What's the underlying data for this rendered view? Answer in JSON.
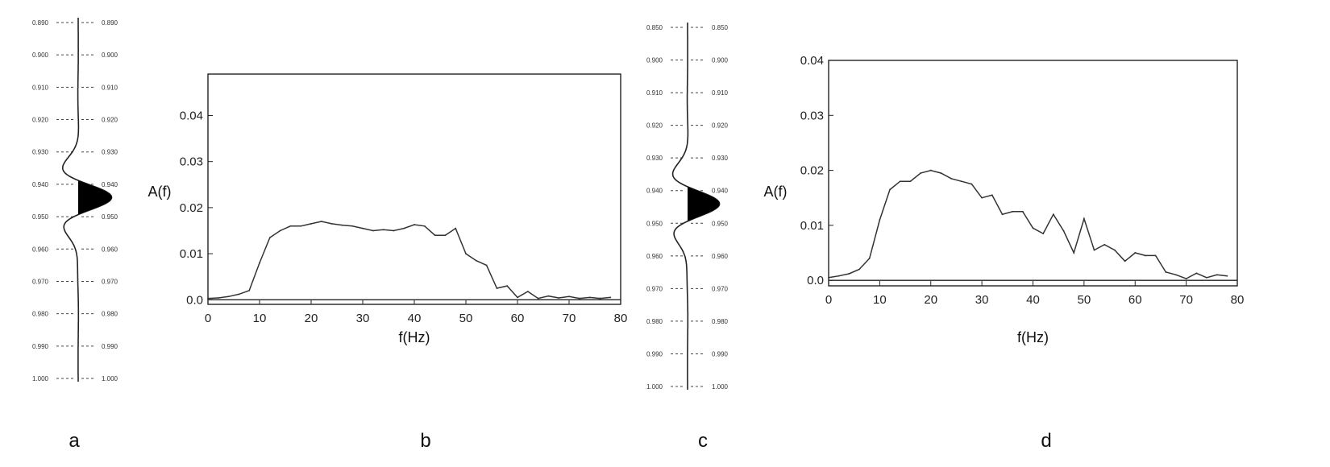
{
  "panels": [
    {
      "id": "a",
      "label": "a"
    },
    {
      "id": "b",
      "label": "b"
    },
    {
      "id": "c",
      "label": "c"
    },
    {
      "id": "d",
      "label": "d"
    }
  ],
  "chart_data": [
    {
      "panel": "a",
      "type": "line",
      "description_visible": "seismic wavelet trace",
      "left_tick_labels": [
        "0.890",
        "0.900",
        "0.910",
        "0.920",
        "0.930",
        "0.940",
        "0.950",
        "0.960",
        "0.970",
        "0.980",
        "0.990",
        "1.000"
      ],
      "right_tick_labels": [
        "0.890",
        "0.900",
        "0.910",
        "0.920",
        "0.930",
        "0.940",
        "0.950",
        "0.960",
        "0.970",
        "0.980",
        "0.990",
        "1.000"
      ]
    },
    {
      "panel": "b",
      "type": "line",
      "xlabel": "f(Hz)",
      "ylabel": "A(f)",
      "xlim": [
        0,
        80
      ],
      "ylim": [
        -0.001,
        0.049
      ],
      "xticks": [
        0,
        10,
        20,
        30,
        40,
        50,
        60,
        70,
        80
      ],
      "xtick_labels": [
        "0",
        "10",
        "20",
        "30",
        "40",
        "50",
        "60",
        "70",
        "80"
      ],
      "yticks": [
        0.0,
        0.01,
        0.02,
        0.03,
        0.04
      ],
      "ytick_labels": [
        "0.0",
        "0.01",
        "0.02",
        "0.03",
        "0.04"
      ],
      "x": [
        0,
        2,
        4,
        6,
        8,
        10,
        12,
        14,
        16,
        18,
        20,
        22,
        24,
        26,
        28,
        30,
        32,
        34,
        36,
        38,
        40,
        42,
        44,
        46,
        48,
        50,
        52,
        54,
        56,
        58,
        60,
        62,
        64,
        66,
        68,
        70,
        72,
        74,
        76,
        78
      ],
      "y": [
        0.0003,
        0.0004,
        0.0007,
        0.0012,
        0.002,
        0.008,
        0.0135,
        0.015,
        0.016,
        0.016,
        0.0165,
        0.017,
        0.0165,
        0.0162,
        0.016,
        0.0155,
        0.015,
        0.0152,
        0.015,
        0.0155,
        0.0163,
        0.016,
        0.014,
        0.014,
        0.0155,
        0.01,
        0.0085,
        0.0075,
        0.0025,
        0.003,
        0.0005,
        0.0018,
        0.0003,
        0.0008,
        0.0004,
        0.0007,
        0.0003,
        0.0005,
        0.0003,
        0.0005
      ]
    },
    {
      "panel": "c",
      "type": "line",
      "description_visible": "seismic wavelet trace",
      "left_tick_labels": [
        "0.850",
        "0.900",
        "0.910",
        "0.920",
        "0.930",
        "0.940",
        "0.950",
        "0.960",
        "0.970",
        "0.980",
        "0.990",
        "1.000"
      ],
      "right_tick_labels": [
        "0.850",
        "0.900",
        "0.910",
        "0.920",
        "0.930",
        "0.940",
        "0.950",
        "0.960",
        "0.970",
        "0.980",
        "0.990",
        "1.000"
      ]
    },
    {
      "panel": "d",
      "type": "line",
      "xlabel": "f(Hz)",
      "ylabel": "A(f)",
      "xlim": [
        0,
        80
      ],
      "ylim": [
        -0.001,
        0.04
      ],
      "xticks": [
        0,
        10,
        20,
        30,
        40,
        50,
        60,
        70,
        80
      ],
      "xtick_labels": [
        "0",
        "10",
        "20",
        "30",
        "40",
        "50",
        "60",
        "70",
        "80"
      ],
      "yticks": [
        0.0,
        0.01,
        0.02,
        0.03,
        0.04
      ],
      "ytick_labels": [
        "0.0",
        "0.01",
        "0.02",
        "0.03",
        "0.04"
      ],
      "x": [
        0,
        2,
        4,
        6,
        8,
        10,
        12,
        14,
        16,
        18,
        20,
        22,
        24,
        26,
        28,
        30,
        32,
        34,
        36,
        38,
        40,
        42,
        44,
        46,
        48,
        50,
        52,
        54,
        56,
        58,
        60,
        62,
        64,
        66,
        68,
        70,
        72,
        74,
        76,
        78
      ],
      "y": [
        0.0005,
        0.0008,
        0.0012,
        0.002,
        0.004,
        0.011,
        0.0165,
        0.018,
        0.018,
        0.0195,
        0.02,
        0.0195,
        0.0185,
        0.018,
        0.0175,
        0.015,
        0.0155,
        0.012,
        0.0125,
        0.0125,
        0.0095,
        0.0085,
        0.012,
        0.009,
        0.005,
        0.0112,
        0.0055,
        0.0065,
        0.0055,
        0.0035,
        0.005,
        0.0045,
        0.0045,
        0.0015,
        0.001,
        0.0003,
        0.0013,
        0.0005,
        0.001,
        0.0008
      ]
    }
  ]
}
